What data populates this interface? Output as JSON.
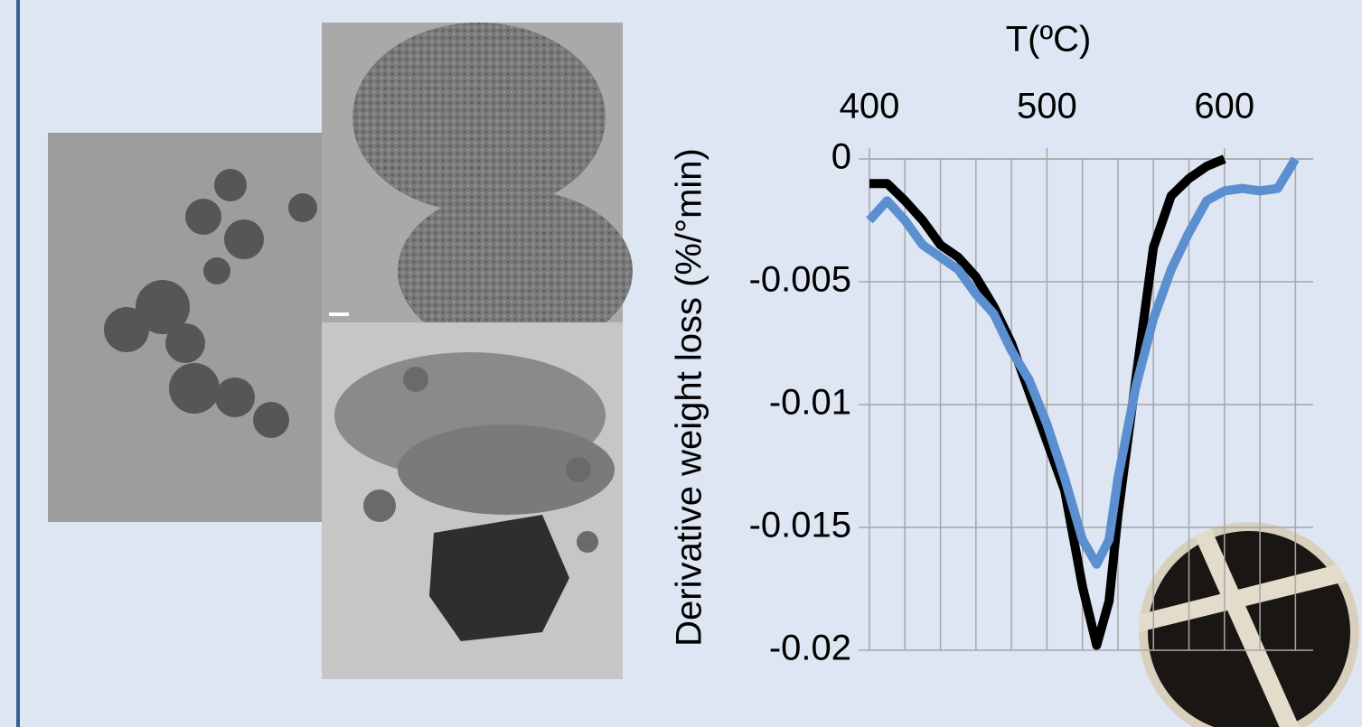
{
  "chart_data": {
    "type": "line",
    "x_label": "T(ºC)",
    "y_label": "Derivative weight loss (%/°min)",
    "x": [
      400,
      410,
      420,
      430,
      440,
      450,
      460,
      470,
      480,
      490,
      500,
      510,
      520,
      528,
      535,
      540,
      550,
      560,
      570,
      580,
      590,
      600,
      610,
      620,
      630,
      640
    ],
    "series": [
      {
        "color": "#000000",
        "values": [
          -0.001,
          -0.001,
          -0.0017,
          -0.0025,
          -0.0035,
          -0.004,
          -0.0048,
          -0.006,
          -0.0075,
          -0.0095,
          -0.0115,
          -0.0135,
          -0.0174,
          -0.0198,
          -0.018,
          -0.0145,
          -0.009,
          -0.0036,
          -0.0015,
          -0.0008,
          -0.0003,
          0,
          null,
          null,
          null,
          null
        ]
      },
      {
        "color": "#5b8fd0",
        "values": [
          -0.0025,
          -0.0017,
          -0.0025,
          -0.0035,
          -0.004,
          -0.0045,
          -0.0055,
          -0.0063,
          -0.0078,
          -0.009,
          -0.0108,
          -0.013,
          -0.0155,
          -0.0165,
          -0.0155,
          -0.013,
          -0.0093,
          -0.0065,
          -0.0045,
          -0.003,
          -0.0017,
          -0.0013,
          -0.0012,
          -0.0013,
          -0.0012,
          0
        ]
      }
    ],
    "xlim": [
      400,
      650
    ],
    "xticks": [
      400,
      500,
      600
    ],
    "xminorticks": [
      400,
      420,
      440,
      460,
      480,
      500,
      520,
      540,
      560,
      580,
      600,
      620,
      640
    ],
    "ylim": [
      -0.02,
      0
    ],
    "yticks": [
      0,
      -0.005,
      -0.01,
      -0.015,
      -0.02
    ],
    "grid": true
  }
}
